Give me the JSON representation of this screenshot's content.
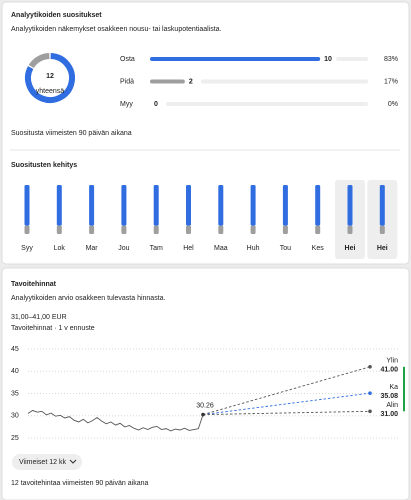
{
  "recommendations": {
    "title": "Analyytikoiden suositukset",
    "subtitle": "Analyytikoiden näkemykset osakkeen nousu- tai laskupotentiaalista.",
    "total": 12,
    "total_label": "yhteensä",
    "rows": [
      {
        "label": "Osta",
        "count": 10,
        "percent": 83,
        "percent_label": "83%",
        "color": "#2f6de1"
      },
      {
        "label": "Pidä",
        "count": 2,
        "percent": 17,
        "percent_label": "17%",
        "color": "#9e9e9e"
      },
      {
        "label": "Myy",
        "count": 0,
        "percent": 0,
        "percent_label": "0%",
        "color": "#e0473c"
      }
    ],
    "note": "Suositusta viimeisten 90 päivän aikana",
    "history_title": "Suositusten kehitys",
    "history": {
      "type": "bar",
      "stacked": true,
      "categories": [
        "Syy",
        "Lok",
        "Mar",
        "Jou",
        "Tam",
        "Hel",
        "Maa",
        "Huh",
        "Tou",
        "Kes",
        "Hei",
        "Hei"
      ],
      "highlighted": [
        false,
        false,
        false,
        false,
        false,
        false,
        false,
        false,
        false,
        false,
        true,
        true
      ],
      "ylim": [
        0,
        12
      ],
      "series": [
        {
          "color": "#9e9e9e",
          "values": [
            2,
            2,
            2,
            2,
            2,
            2,
            2,
            2,
            2,
            2,
            2,
            2
          ]
        },
        {
          "color": "#2f6de1",
          "values": [
            10,
            10,
            10,
            10,
            10,
            10,
            10,
            10,
            10,
            10,
            10,
            10
          ]
        }
      ]
    }
  },
  "price_targets": {
    "title": "Tavoitehinnat",
    "subtitle": "Analyytikoiden arvio osakkeen tulevasta hinnasta.",
    "range_label": "31,00–41,00 EUR",
    "range_note": "Tavoitehinnat · 1 v ennuste",
    "chart": {
      "type": "line",
      "ylim": [
        25,
        45
      ],
      "yticks": [
        25,
        30,
        35,
        40,
        45
      ],
      "grid": true,
      "history": {
        "color": "#555555",
        "values": [
          30.5,
          31.2,
          30.8,
          31.0,
          30.2,
          30.6,
          29.9,
          30.1,
          29.5,
          29.8,
          29.0,
          28.6,
          29.2,
          28.4,
          28.9,
          29.6,
          28.8,
          28.2,
          28.6,
          27.9,
          28.3,
          27.5,
          27.8,
          27.2,
          26.8,
          27.3,
          26.9,
          27.4,
          27.6,
          26.9,
          27.1,
          26.6,
          27.0,
          26.8,
          27.2,
          26.7,
          26.9,
          27.1,
          30.26
        ],
        "value_labels": [
          null,
          null,
          null,
          null,
          null,
          null,
          null,
          null,
          null,
          null,
          null,
          null,
          null,
          null,
          null,
          null,
          null,
          null,
          null,
          null,
          null,
          null,
          null,
          null,
          null,
          null,
          null,
          null,
          null,
          null,
          null,
          null,
          null,
          null,
          null,
          null,
          null,
          null,
          "30.26"
        ]
      },
      "targets": [
        {
          "name": "Ylin",
          "value": 41,
          "label": "41.00",
          "color": "#555555"
        },
        {
          "name": "Ka",
          "value": 35.08,
          "label": "35.08",
          "color": "#2f6de1"
        },
        {
          "name": "Alin",
          "value": 31,
          "label": "31.00",
          "color": "#555555"
        }
      ]
    },
    "button": "Viimeiset 12 kk",
    "footer": "12 tavoitehintaa viimeisten 90 päivän aikana"
  }
}
